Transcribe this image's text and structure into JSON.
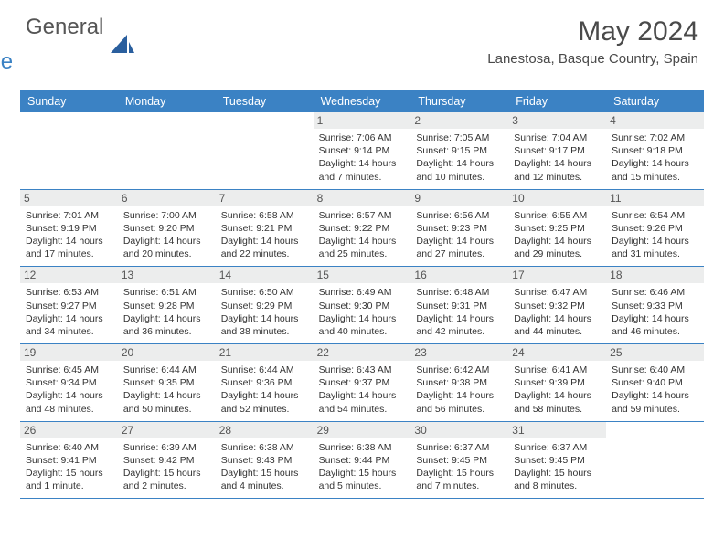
{
  "logo": {
    "text1": "General",
    "text2": "Blue"
  },
  "title": "May 2024",
  "location": "Lanestosa, Basque Country, Spain",
  "dayNames": [
    "Sunday",
    "Monday",
    "Tuesday",
    "Wednesday",
    "Thursday",
    "Friday",
    "Saturday"
  ],
  "colors": {
    "accent": "#3b82c4",
    "dayNumBg": "#eceded"
  },
  "weeks": [
    [
      null,
      null,
      null,
      {
        "n": "1",
        "sr": "7:06 AM",
        "ss": "9:14 PM",
        "dl": "14 hours and 7 minutes."
      },
      {
        "n": "2",
        "sr": "7:05 AM",
        "ss": "9:15 PM",
        "dl": "14 hours and 10 minutes."
      },
      {
        "n": "3",
        "sr": "7:04 AM",
        "ss": "9:17 PM",
        "dl": "14 hours and 12 minutes."
      },
      {
        "n": "4",
        "sr": "7:02 AM",
        "ss": "9:18 PM",
        "dl": "14 hours and 15 minutes."
      }
    ],
    [
      {
        "n": "5",
        "sr": "7:01 AM",
        "ss": "9:19 PM",
        "dl": "14 hours and 17 minutes."
      },
      {
        "n": "6",
        "sr": "7:00 AM",
        "ss": "9:20 PM",
        "dl": "14 hours and 20 minutes."
      },
      {
        "n": "7",
        "sr": "6:58 AM",
        "ss": "9:21 PM",
        "dl": "14 hours and 22 minutes."
      },
      {
        "n": "8",
        "sr": "6:57 AM",
        "ss": "9:22 PM",
        "dl": "14 hours and 25 minutes."
      },
      {
        "n": "9",
        "sr": "6:56 AM",
        "ss": "9:23 PM",
        "dl": "14 hours and 27 minutes."
      },
      {
        "n": "10",
        "sr": "6:55 AM",
        "ss": "9:25 PM",
        "dl": "14 hours and 29 minutes."
      },
      {
        "n": "11",
        "sr": "6:54 AM",
        "ss": "9:26 PM",
        "dl": "14 hours and 31 minutes."
      }
    ],
    [
      {
        "n": "12",
        "sr": "6:53 AM",
        "ss": "9:27 PM",
        "dl": "14 hours and 34 minutes."
      },
      {
        "n": "13",
        "sr": "6:51 AM",
        "ss": "9:28 PM",
        "dl": "14 hours and 36 minutes."
      },
      {
        "n": "14",
        "sr": "6:50 AM",
        "ss": "9:29 PM",
        "dl": "14 hours and 38 minutes."
      },
      {
        "n": "15",
        "sr": "6:49 AM",
        "ss": "9:30 PM",
        "dl": "14 hours and 40 minutes."
      },
      {
        "n": "16",
        "sr": "6:48 AM",
        "ss": "9:31 PM",
        "dl": "14 hours and 42 minutes."
      },
      {
        "n": "17",
        "sr": "6:47 AM",
        "ss": "9:32 PM",
        "dl": "14 hours and 44 minutes."
      },
      {
        "n": "18",
        "sr": "6:46 AM",
        "ss": "9:33 PM",
        "dl": "14 hours and 46 minutes."
      }
    ],
    [
      {
        "n": "19",
        "sr": "6:45 AM",
        "ss": "9:34 PM",
        "dl": "14 hours and 48 minutes."
      },
      {
        "n": "20",
        "sr": "6:44 AM",
        "ss": "9:35 PM",
        "dl": "14 hours and 50 minutes."
      },
      {
        "n": "21",
        "sr": "6:44 AM",
        "ss": "9:36 PM",
        "dl": "14 hours and 52 minutes."
      },
      {
        "n": "22",
        "sr": "6:43 AM",
        "ss": "9:37 PM",
        "dl": "14 hours and 54 minutes."
      },
      {
        "n": "23",
        "sr": "6:42 AM",
        "ss": "9:38 PM",
        "dl": "14 hours and 56 minutes."
      },
      {
        "n": "24",
        "sr": "6:41 AM",
        "ss": "9:39 PM",
        "dl": "14 hours and 58 minutes."
      },
      {
        "n": "25",
        "sr": "6:40 AM",
        "ss": "9:40 PM",
        "dl": "14 hours and 59 minutes."
      }
    ],
    [
      {
        "n": "26",
        "sr": "6:40 AM",
        "ss": "9:41 PM",
        "dl": "15 hours and 1 minute."
      },
      {
        "n": "27",
        "sr": "6:39 AM",
        "ss": "9:42 PM",
        "dl": "15 hours and 2 minutes."
      },
      {
        "n": "28",
        "sr": "6:38 AM",
        "ss": "9:43 PM",
        "dl": "15 hours and 4 minutes."
      },
      {
        "n": "29",
        "sr": "6:38 AM",
        "ss": "9:44 PM",
        "dl": "15 hours and 5 minutes."
      },
      {
        "n": "30",
        "sr": "6:37 AM",
        "ss": "9:45 PM",
        "dl": "15 hours and 7 minutes."
      },
      {
        "n": "31",
        "sr": "6:37 AM",
        "ss": "9:45 PM",
        "dl": "15 hours and 8 minutes."
      },
      null
    ]
  ],
  "labels": {
    "sunrise": "Sunrise:",
    "sunset": "Sunset:",
    "daylight": "Daylight:"
  }
}
